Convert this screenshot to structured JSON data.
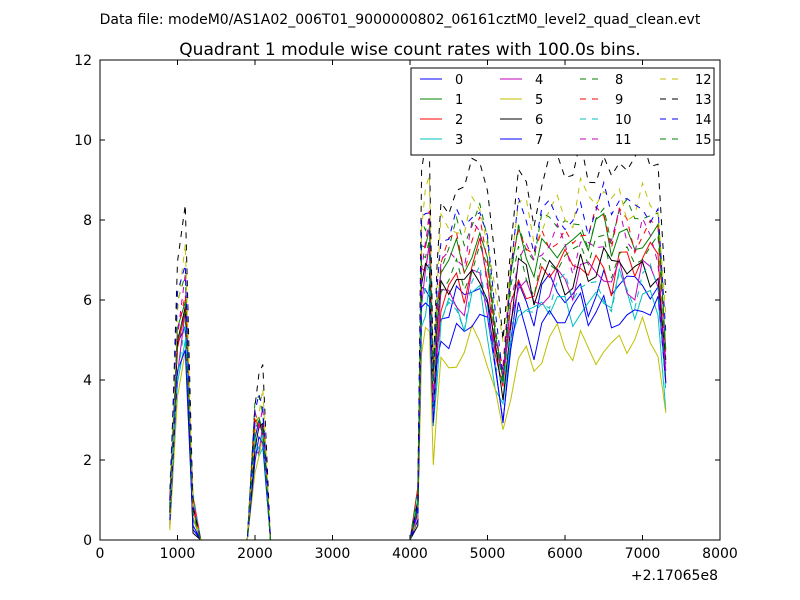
{
  "chart_data": {
    "type": "line",
    "suptitle": "Data file: modeM0/AS1A02_006T01_9000000802_06161cztM0_level2_quad_clean.evt",
    "title": "Quadrant 1 module wise count rates with 100.0s bins.",
    "xlabel": "",
    "ylabel": "",
    "x_offset_label": "+2.17065e8",
    "xlim": [
      0,
      8000
    ],
    "ylim": [
      0,
      12
    ],
    "xticks": [
      0,
      1000,
      2000,
      3000,
      4000,
      5000,
      6000,
      7000,
      8000
    ],
    "yticks": [
      0,
      2,
      4,
      6,
      8,
      10,
      12
    ],
    "legend_position": "top-right",
    "legend_columns": 4,
    "x": [
      900,
      1000,
      1100,
      1200,
      1300,
      1400,
      1500,
      1600,
      1700,
      1800,
      1900,
      2000,
      2050,
      2100,
      2200,
      2300,
      2400,
      2500,
      2600,
      2700,
      2800,
      2900,
      3000,
      3100,
      3200,
      3300,
      3400,
      3500,
      3600,
      3700,
      3800,
      3900,
      4000,
      4100,
      4150,
      4200,
      4250,
      4300,
      4350,
      4400,
      4500,
      4600,
      4700,
      4800,
      4900,
      5000,
      5100,
      5200,
      5300,
      5400,
      5500,
      5600,
      5700,
      5800,
      5900,
      6000,
      6100,
      6200,
      6300,
      6400,
      6500,
      6600,
      6700,
      6800,
      6900,
      7000,
      7100,
      7200,
      7300
    ],
    "series": [
      {
        "name": "0",
        "color": "#0000ff",
        "dash": "solid",
        "base": 6.3
      },
      {
        "name": "1",
        "color": "#008000",
        "dash": "solid",
        "base": 7.6
      },
      {
        "name": "2",
        "color": "#ff0000",
        "dash": "solid",
        "base": 6.9
      },
      {
        "name": "3",
        "color": "#00bfbf",
        "dash": "solid",
        "base": 6.0
      },
      {
        "name": "4",
        "color": "#bf00bf",
        "dash": "solid",
        "base": 6.6
      },
      {
        "name": "5",
        "color": "#bfbf00",
        "dash": "solid",
        "base": 4.9
      },
      {
        "name": "6",
        "color": "#000000",
        "dash": "solid",
        "base": 6.8
      },
      {
        "name": "7",
        "color": "#0000ff",
        "dash": "solid",
        "base": 5.7
      },
      {
        "name": "8",
        "color": "#008000",
        "dash": "dashed",
        "base": 8.0
      },
      {
        "name": "9",
        "color": "#ff0000",
        "dash": "dashed",
        "base": 7.8
      },
      {
        "name": "10",
        "color": "#00bfbf",
        "dash": "dashed",
        "base": 6.3
      },
      {
        "name": "11",
        "color": "#bf00bf",
        "dash": "dashed",
        "base": 7.5
      },
      {
        "name": "12",
        "color": "#bfbf00",
        "dash": "dashed",
        "base": 8.5
      },
      {
        "name": "13",
        "color": "#000000",
        "dash": "dashed",
        "base": 9.4
      },
      {
        "name": "14",
        "color": "#0000ff",
        "dash": "dashed",
        "base": 8.3
      },
      {
        "name": "15",
        "color": "#008000",
        "dash": "dashed",
        "base": 7.2
      }
    ],
    "profile": [
      0.1,
      0.7,
      0.85,
      0.1,
      0,
      0,
      0,
      0,
      0,
      0,
      0,
      0.38,
      0.4,
      0.42,
      0,
      0,
      0,
      0,
      0,
      0,
      0,
      0,
      0,
      0,
      0,
      0,
      0,
      0,
      0,
      0,
      0,
      0,
      0,
      0.12,
      0.95,
      1.0,
      1.05,
      0.48,
      0.72,
      0.9,
      0.92,
      0.95,
      0.9,
      1.0,
      1.02,
      0.9,
      0.7,
      0.55,
      0.82,
      0.98,
      0.95,
      0.88,
      0.96,
      0.98,
      1.0,
      0.98,
      0.95,
      1.02,
      0.97,
      1.0,
      1.02,
      0.96,
      1.04,
      1.0,
      0.97,
      1.03,
      1.01,
      0.99,
      0.62
    ]
  }
}
